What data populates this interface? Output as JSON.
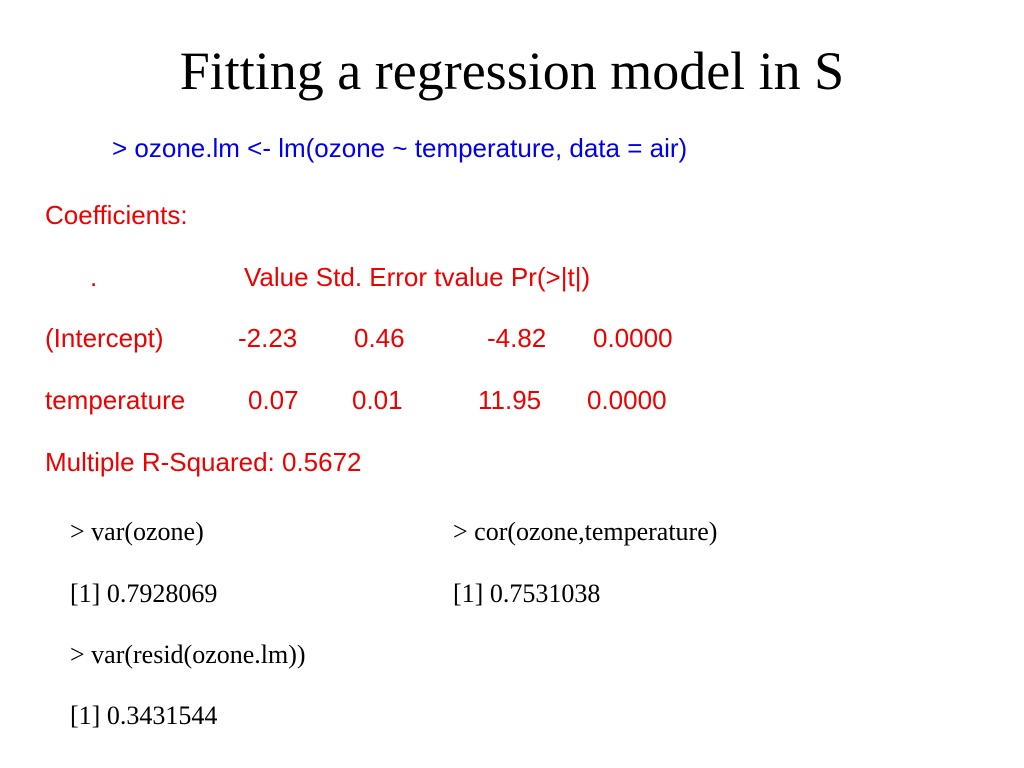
{
  "title": "Fitting a regression model in S",
  "command": "> ozone.lm <- lm(ozone ~ temperature, data = air)",
  "coefficients": {
    "heading": "Coefficients:",
    "header": [
      ".",
      "Value Std. Error tvalue Pr(>|t|)"
    ],
    "rows": [
      [
        "(Intercept)",
        "-2.23",
        "0.46",
        "-4.82",
        "0.0000"
      ],
      [
        "temperature",
        "0.07",
        "0.01",
        "11.95",
        "0.0000"
      ]
    ],
    "r_squared": "Multiple R-Squared: 0.5672"
  },
  "console": {
    "left": [
      {
        "command": "> var(ozone)",
        "output": "[1] 0.7928069"
      },
      {
        "command": "> var(resid(ozone.lm))",
        "output": "[1] 0.3431544"
      }
    ],
    "right": [
      {
        "command": "> cor(ozone,temperature)",
        "output": "[1] 0.7531038"
      }
    ]
  }
}
